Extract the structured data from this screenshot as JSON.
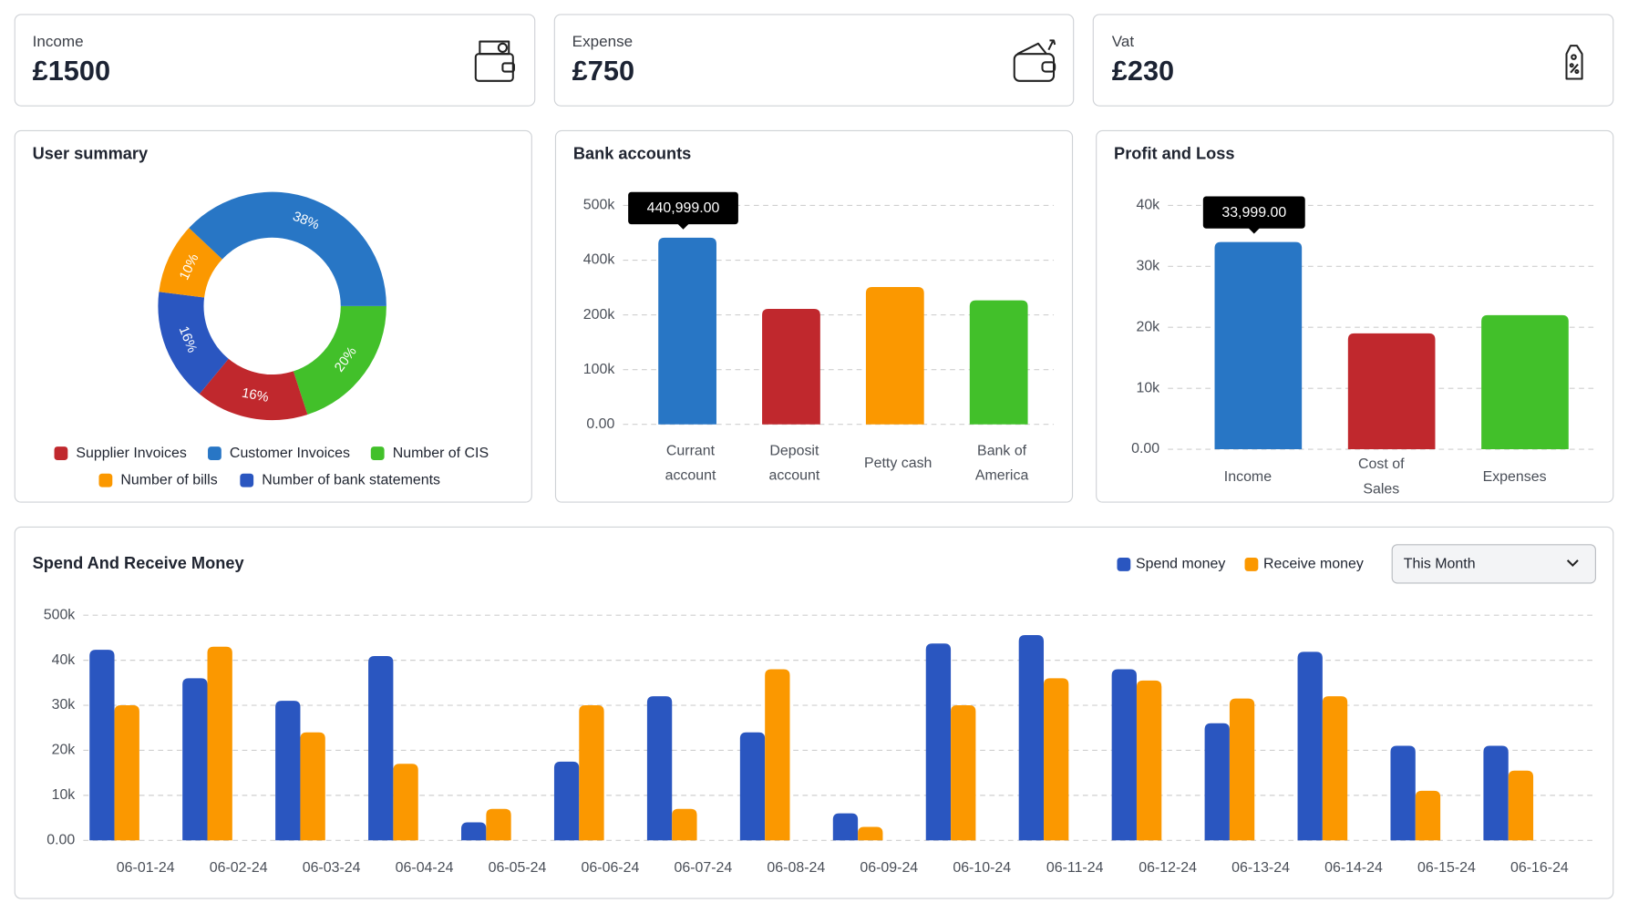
{
  "cards": [
    {
      "label": "Income",
      "value": "£1500"
    },
    {
      "label": "Expense",
      "value": "£750"
    },
    {
      "label": "Vat",
      "value": "£230"
    }
  ],
  "filter": "This Month",
  "chart_data": [
    {
      "type": "donut",
      "title": "User summary",
      "categories": [
        "Supplier Invoices",
        "Customer Invoices",
        "Number of CIS",
        "Number of bills",
        "Number of bank statements"
      ],
      "values": [
        16,
        38,
        20,
        10,
        16
      ],
      "value_labels": [
        "16%",
        "38%",
        "20%",
        "10%",
        "16%"
      ],
      "colors": [
        "#c0282d",
        "#2876c5",
        "#42c02a",
        "#fb9800",
        "#2a56c0"
      ]
    },
    {
      "type": "bar",
      "title": "Bank accounts",
      "categories": [
        "Currant account",
        "Deposit account",
        "Petty cash",
        "Bank of America"
      ],
      "values": [
        440999,
        222000,
        302000,
        253000
      ],
      "value_labels": [
        "440,999.00",
        null,
        null,
        null
      ],
      "colors": [
        "#2876c5",
        "#c0282d",
        "#fb9800",
        "#42c02a"
      ],
      "ylim": [
        0,
        500000
      ],
      "yticks": [
        {
          "value": 0,
          "label": "0.00"
        },
        {
          "value": 100000,
          "label": "100k"
        },
        {
          "value": 200000,
          "label": "200k"
        },
        {
          "value": 400000,
          "label": "400k"
        },
        {
          "value": 500000,
          "label": "500k"
        }
      ],
      "grid": true
    },
    {
      "type": "bar",
      "title": "Profit and Loss",
      "categories": [
        "Income",
        "Cost of Sales",
        "Expenses"
      ],
      "values": [
        33999,
        19000,
        22000
      ],
      "value_labels": [
        "33,999.00",
        null,
        null
      ],
      "colors": [
        "#2876c5",
        "#c0282d",
        "#42c02a"
      ],
      "ylim": [
        0,
        40000
      ],
      "yticks": [
        {
          "value": 0,
          "label": "0.00"
        },
        {
          "value": 10000,
          "label": "10k"
        },
        {
          "value": 20000,
          "label": "20k"
        },
        {
          "value": 30000,
          "label": "30k"
        },
        {
          "value": 40000,
          "label": "40k"
        }
      ],
      "grid": true
    },
    {
      "type": "grouped-bar",
      "title": "Spend And Receive Money",
      "categories": [
        "06-01-24",
        "06-02-24",
        "06-03-24",
        "06-04-24",
        "06-05-24",
        "06-06-24",
        "06-07-24",
        "06-08-24",
        "06-09-24",
        "06-10-24",
        "06-11-24",
        "06-12-24",
        "06-13-24",
        "06-14-24",
        "06-15-24",
        "06-16-24"
      ],
      "series": [
        {
          "name": "Spend money",
          "color": "#2a56c0",
          "values": [
            147000,
            36000,
            31000,
            83000,
            4000,
            17500,
            32000,
            24000,
            6000,
            211000,
            297000,
            38000,
            26000,
            126000,
            21000,
            21000
          ]
        },
        {
          "name": "Receive money",
          "color": "#fb9800",
          "values": [
            30000,
            179000,
            24000,
            17000,
            7000,
            30000,
            7000,
            38000,
            3000,
            30000,
            36000,
            35500,
            31500,
            32000,
            11000,
            15500
          ]
        }
      ],
      "ylim": [
        0,
        500000
      ],
      "yticks": [
        {
          "value": 0,
          "label": "0.00"
        },
        {
          "value": 10000,
          "label": "10k"
        },
        {
          "value": 20000,
          "label": "20k"
        },
        {
          "value": 30000,
          "label": "30k"
        },
        {
          "value": 40000,
          "label": "40k"
        },
        {
          "value": 500000,
          "label": "500k"
        }
      ],
      "grid": true,
      "legend": "top-right"
    }
  ]
}
